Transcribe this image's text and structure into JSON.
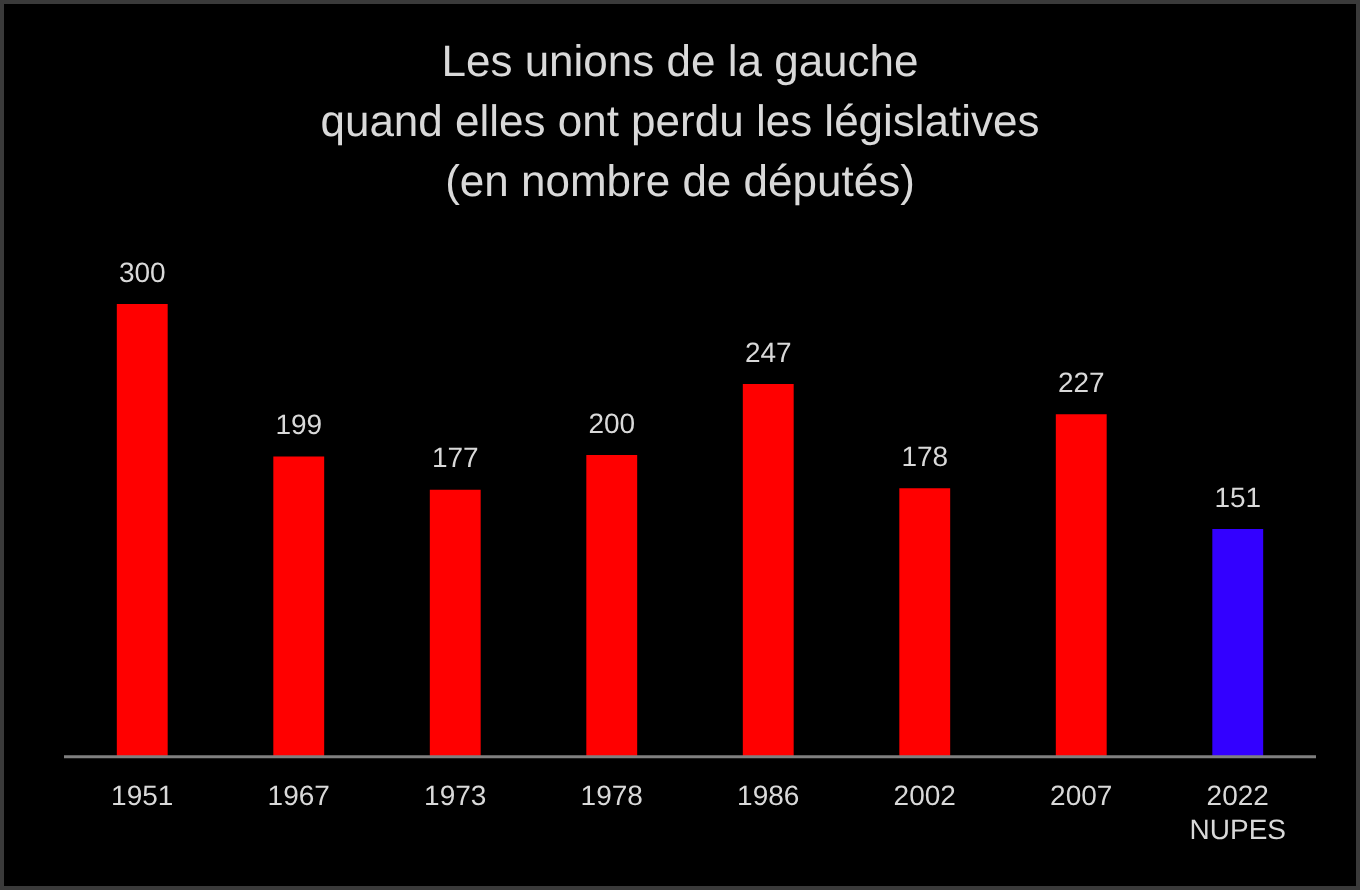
{
  "chart_data": {
    "type": "bar",
    "title": "Les unions de la gauche\nquand elles ont perdu les législatives\n(en nombre de députés)",
    "categories": [
      "1951",
      "1967",
      "1973",
      "1978",
      "1986",
      "2002",
      "2007",
      "2022\nNUPES"
    ],
    "values": [
      300,
      199,
      177,
      200,
      247,
      178,
      227,
      151
    ],
    "colors": [
      "#ff0000",
      "#ff0000",
      "#ff0000",
      "#ff0000",
      "#ff0000",
      "#ff0000",
      "#ff0000",
      "#3300ff"
    ],
    "data_labels": true
  }
}
